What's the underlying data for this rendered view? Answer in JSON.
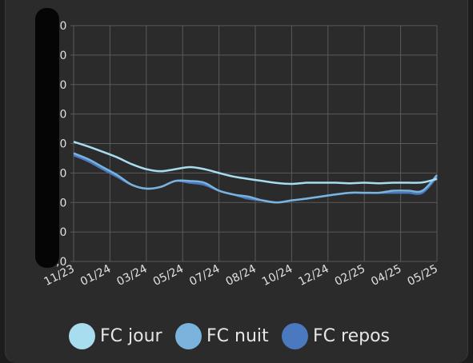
{
  "chart_data": {
    "type": "line",
    "title": "",
    "xlabel": "",
    "ylabel": "",
    "x_ticks": [
      "11/23",
      "01/24",
      "03/24",
      "05/24",
      "07/24",
      "08/24",
      "10/24",
      "12/24",
      "02/25",
      "04/25",
      "05/25"
    ],
    "y_tick_labels": [
      ",0",
      ",0",
      ",0",
      ",0",
      ",0",
      ",0",
      ",0",
      ",0",
      ",0"
    ],
    "grid": true,
    "legend_position": "bottom",
    "series": [
      {
        "name": "FC jour",
        "color": "#a8dcef",
        "values": [
          4.06,
          3.9,
          3.72,
          3.53,
          3.3,
          3.13,
          3.06,
          3.13,
          3.2,
          3.13,
          3.0,
          2.88,
          2.8,
          2.73,
          2.66,
          2.63,
          2.67,
          2.67,
          2.67,
          2.65,
          2.67,
          2.65,
          2.67,
          2.67,
          2.68,
          2.8
        ]
      },
      {
        "name": "FC nuit",
        "color": "#7ab3dc",
        "values": [
          3.67,
          3.47,
          3.2,
          2.93,
          2.6,
          2.47,
          2.53,
          2.73,
          2.73,
          2.67,
          2.4,
          2.27,
          2.2,
          2.07,
          2.0,
          2.07,
          2.13,
          2.2,
          2.27,
          2.33,
          2.33,
          2.33,
          2.4,
          2.4,
          2.4,
          2.93
        ]
      },
      {
        "name": "FC repos",
        "color": "#4a79c0",
        "values": [
          3.6,
          3.4,
          3.13,
          2.87,
          2.6,
          2.47,
          2.53,
          2.73,
          2.67,
          2.6,
          2.4,
          2.27,
          2.13,
          2.07,
          2.0,
          2.07,
          2.13,
          2.2,
          2.27,
          2.33,
          2.33,
          2.33,
          2.33,
          2.33,
          2.33,
          2.87
        ]
      }
    ]
  },
  "legend": {
    "items": [
      {
        "label": "FC jour",
        "color": "#a8dcef"
      },
      {
        "label": "FC nuit",
        "color": "#7ab3dc"
      },
      {
        "label": "FC repos",
        "color": "#4a79c0"
      }
    ]
  }
}
